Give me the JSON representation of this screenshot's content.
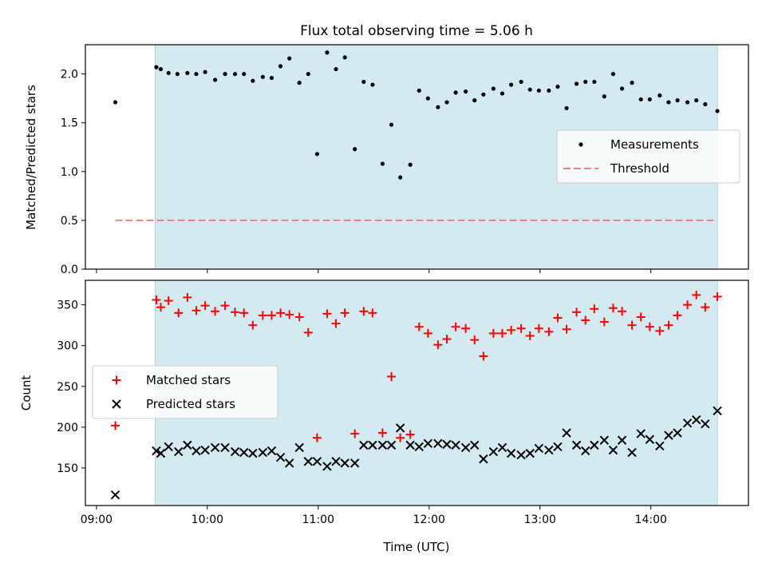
{
  "chart_data": [
    {
      "type": "scatter",
      "title": "Flux total observing time = 5.06 h",
      "xlabel": "",
      "ylabel": "Matched/Predicted stars",
      "ylim": [
        0,
        2.3
      ],
      "yticks": [
        0.0,
        0.5,
        1.0,
        1.5,
        2.0
      ],
      "ytick_labels": [
        "0.0",
        "0.5",
        "1.0",
        "1.5",
        "2.0"
      ],
      "observing_window_hours": [
        9.53,
        14.6
      ],
      "observing_window_color": "#d4eaf1",
      "legend": {
        "placement": "center-right",
        "entries": [
          "Measurements",
          "Threshold"
        ]
      },
      "series": [
        {
          "name": "Measurements",
          "color": "#000000",
          "marker": "dot",
          "points": [
            [
              9.17,
              1.71
            ],
            [
              9.54,
              2.07
            ],
            [
              9.58,
              2.05
            ],
            [
              9.65,
              2.01
            ],
            [
              9.73,
              2.0
            ],
            [
              9.82,
              2.01
            ],
            [
              9.9,
              2.0
            ],
            [
              9.98,
              2.02
            ],
            [
              10.07,
              1.94
            ],
            [
              10.16,
              2.0
            ],
            [
              10.25,
              2.0
            ],
            [
              10.33,
              2.0
            ],
            [
              10.41,
              1.93
            ],
            [
              10.5,
              1.97
            ],
            [
              10.58,
              1.96
            ],
            [
              10.66,
              2.08
            ],
            [
              10.74,
              2.16
            ],
            [
              10.83,
              1.91
            ],
            [
              10.91,
              2.0
            ],
            [
              10.99,
              1.18
            ],
            [
              11.08,
              2.22
            ],
            [
              11.16,
              2.05
            ],
            [
              11.24,
              2.17
            ],
            [
              11.33,
              1.23
            ],
            [
              11.41,
              1.92
            ],
            [
              11.49,
              1.89
            ],
            [
              11.58,
              1.08
            ],
            [
              11.66,
              1.48
            ],
            [
              11.74,
              0.94
            ],
            [
              11.83,
              1.07
            ],
            [
              11.91,
              1.83
            ],
            [
              11.99,
              1.75
            ],
            [
              12.08,
              1.66
            ],
            [
              12.16,
              1.71
            ],
            [
              12.24,
              1.81
            ],
            [
              12.33,
              1.82
            ],
            [
              12.41,
              1.73
            ],
            [
              12.49,
              1.79
            ],
            [
              12.58,
              1.85
            ],
            [
              12.66,
              1.8
            ],
            [
              12.74,
              1.89
            ],
            [
              12.83,
              1.92
            ],
            [
              12.91,
              1.84
            ],
            [
              12.99,
              1.83
            ],
            [
              13.08,
              1.83
            ],
            [
              13.16,
              1.87
            ],
            [
              13.24,
              1.65
            ],
            [
              13.33,
              1.9
            ],
            [
              13.41,
              1.92
            ],
            [
              13.49,
              1.92
            ],
            [
              13.58,
              1.77
            ],
            [
              13.66,
              2.0
            ],
            [
              13.74,
              1.85
            ],
            [
              13.83,
              1.91
            ],
            [
              13.91,
              1.74
            ],
            [
              13.99,
              1.74
            ],
            [
              14.08,
              1.78
            ],
            [
              14.16,
              1.71
            ],
            [
              14.24,
              1.73
            ],
            [
              14.33,
              1.71
            ],
            [
              14.41,
              1.73
            ],
            [
              14.49,
              1.69
            ],
            [
              14.6,
              1.62
            ]
          ]
        },
        {
          "name": "Threshold",
          "color": "#f08080",
          "style": "dashed",
          "points": [
            [
              9.17,
              0.5
            ],
            [
              14.6,
              0.5
            ]
          ]
        }
      ]
    },
    {
      "type": "scatter",
      "title": "",
      "xlabel": "Time (UTC)",
      "ylabel": "Count",
      "xlim": [
        8.9,
        14.88
      ],
      "xticks": [
        9,
        10,
        11,
        12,
        13,
        14
      ],
      "xtick_labels": [
        "09:00",
        "10:00",
        "11:00",
        "12:00",
        "13:00",
        "14:00"
      ],
      "ylim": [
        104,
        380
      ],
      "yticks": [
        150,
        200,
        250,
        300,
        350
      ],
      "ytick_labels": [
        "150",
        "200",
        "250",
        "300",
        "350"
      ],
      "observing_window_hours": [
        9.53,
        14.6
      ],
      "observing_window_color": "#d4eaf1",
      "legend": {
        "placement": "center-left",
        "entries": [
          "Matched stars",
          "Predicted stars"
        ]
      },
      "series": [
        {
          "name": "Matched stars",
          "color": "#ff0000",
          "marker": "plus",
          "points": [
            [
              9.17,
              202
            ],
            [
              9.54,
              356
            ],
            [
              9.58,
              347
            ],
            [
              9.65,
              355
            ],
            [
              9.74,
              340
            ],
            [
              9.82,
              359
            ],
            [
              9.9,
              343
            ],
            [
              9.98,
              349
            ],
            [
              10.07,
              342
            ],
            [
              10.16,
              349
            ],
            [
              10.25,
              341
            ],
            [
              10.33,
              340
            ],
            [
              10.41,
              325
            ],
            [
              10.5,
              337
            ],
            [
              10.58,
              337
            ],
            [
              10.66,
              340
            ],
            [
              10.74,
              338
            ],
            [
              10.83,
              335
            ],
            [
              10.91,
              316
            ],
            [
              10.99,
              187
            ],
            [
              11.08,
              339
            ],
            [
              11.16,
              327
            ],
            [
              11.24,
              340
            ],
            [
              11.33,
              192
            ],
            [
              11.41,
              342
            ],
            [
              11.49,
              340
            ],
            [
              11.58,
              193
            ],
            [
              11.66,
              262
            ],
            [
              11.74,
              187
            ],
            [
              11.83,
              191
            ],
            [
              11.91,
              323
            ],
            [
              11.99,
              315
            ],
            [
              12.08,
              301
            ],
            [
              12.16,
              308
            ],
            [
              12.24,
              323
            ],
            [
              12.33,
              321
            ],
            [
              12.41,
              307
            ],
            [
              12.49,
              287
            ],
            [
              12.58,
              315
            ],
            [
              12.66,
              315
            ],
            [
              12.74,
              319
            ],
            [
              12.83,
              321
            ],
            [
              12.91,
              312
            ],
            [
              12.99,
              321
            ],
            [
              13.08,
              317
            ],
            [
              13.16,
              334
            ],
            [
              13.24,
              320
            ],
            [
              13.33,
              341
            ],
            [
              13.41,
              331
            ],
            [
              13.49,
              345
            ],
            [
              13.58,
              329
            ],
            [
              13.66,
              346
            ],
            [
              13.74,
              342
            ],
            [
              13.83,
              325
            ],
            [
              13.91,
              335
            ],
            [
              13.99,
              323
            ],
            [
              14.08,
              318
            ],
            [
              14.16,
              325
            ],
            [
              14.24,
              337
            ],
            [
              14.33,
              350
            ],
            [
              14.41,
              362
            ],
            [
              14.49,
              347
            ],
            [
              14.6,
              360
            ]
          ]
        },
        {
          "name": "Predicted stars",
          "color": "#000000",
          "marker": "cross",
          "points": [
            [
              9.17,
              117
            ],
            [
              9.54,
              171
            ],
            [
              9.58,
              168
            ],
            [
              9.65,
              176
            ],
            [
              9.74,
              170
            ],
            [
              9.82,
              178
            ],
            [
              9.9,
              171
            ],
            [
              9.98,
              172
            ],
            [
              10.07,
              175
            ],
            [
              10.16,
              175
            ],
            [
              10.25,
              170
            ],
            [
              10.33,
              169
            ],
            [
              10.41,
              168
            ],
            [
              10.5,
              169
            ],
            [
              10.58,
              171
            ],
            [
              10.66,
              163
            ],
            [
              10.74,
              156
            ],
            [
              10.83,
              175
            ],
            [
              10.91,
              158
            ],
            [
              10.99,
              158
            ],
            [
              11.08,
              152
            ],
            [
              11.16,
              158
            ],
            [
              11.24,
              156
            ],
            [
              11.33,
              156
            ],
            [
              11.41,
              178
            ],
            [
              11.49,
              178
            ],
            [
              11.58,
              178
            ],
            [
              11.66,
              178
            ],
            [
              11.74,
              199
            ],
            [
              11.83,
              178
            ],
            [
              11.91,
              176
            ],
            [
              11.99,
              180
            ],
            [
              12.08,
              180
            ],
            [
              12.16,
              179
            ],
            [
              12.24,
              178
            ],
            [
              12.33,
              175
            ],
            [
              12.41,
              178
            ],
            [
              12.49,
              161
            ],
            [
              12.58,
              170
            ],
            [
              12.66,
              175
            ],
            [
              12.74,
              168
            ],
            [
              12.83,
              166
            ],
            [
              12.91,
              168
            ],
            [
              12.99,
              174
            ],
            [
              13.08,
              172
            ],
            [
              13.16,
              176
            ],
            [
              13.24,
              193
            ],
            [
              13.33,
              178
            ],
            [
              13.41,
              171
            ],
            [
              13.49,
              178
            ],
            [
              13.58,
              184
            ],
            [
              13.66,
              172
            ],
            [
              13.74,
              184
            ],
            [
              13.83,
              169
            ],
            [
              13.91,
              192
            ],
            [
              13.99,
              185
            ],
            [
              14.08,
              177
            ],
            [
              14.16,
              190
            ],
            [
              14.24,
              193
            ],
            [
              14.33,
              205
            ],
            [
              14.41,
              209
            ],
            [
              14.49,
              204
            ],
            [
              14.6,
              220
            ]
          ]
        }
      ]
    }
  ]
}
